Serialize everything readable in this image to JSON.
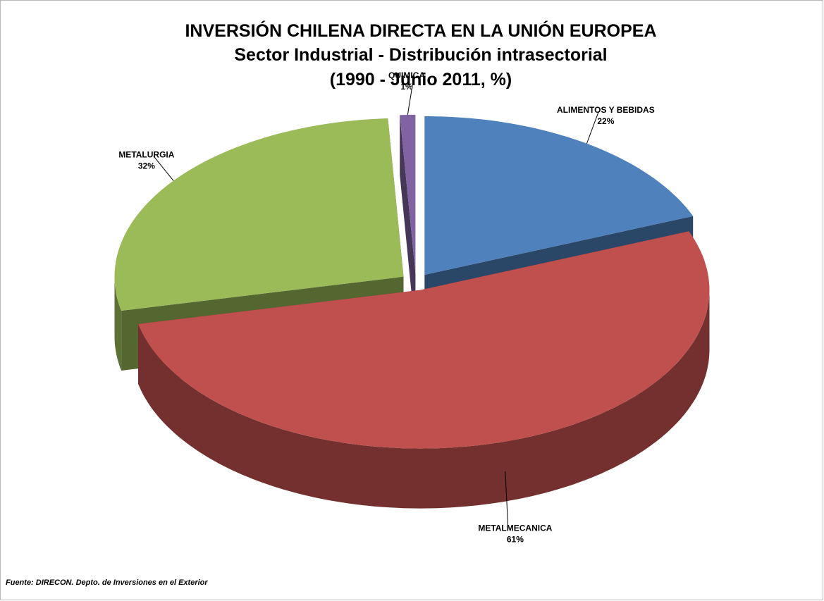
{
  "chart_data": {
    "type": "pie3d",
    "title_lines": [
      "INVERSIÓN CHILENA DIRECTA EN LA UNIÓN EUROPEA",
      "Sector Industrial - Distribución intrasectorial",
      "(1990 - Junio 2011,  %)"
    ],
    "categories": [
      "ALIMENTOS Y BEBIDAS",
      "METALMECANICA",
      "METALURGIA",
      "QUIMICA"
    ],
    "values": [
      22,
      61,
      32,
      1
    ],
    "value_labels": [
      "22%",
      "61%",
      "32%",
      "1%"
    ],
    "colors": [
      "#4f81bd",
      "#c0504d",
      "#9bbb59",
      "#8064a2"
    ],
    "source": "Fuente: DIRECON. Depto. de Inversiones en el Exterior"
  }
}
